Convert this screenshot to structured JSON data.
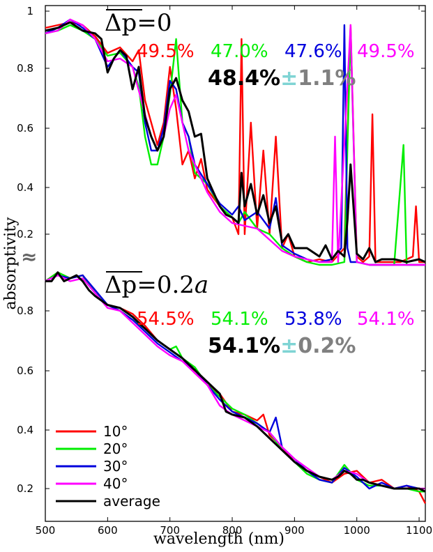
{
  "chart_data": {
    "type": "line",
    "x_label": "wavelength (nm)",
    "y_label": "absorptivity",
    "x_ticks": [
      "500",
      "600",
      "700",
      "800",
      "900",
      "1000",
      "1100"
    ],
    "xlim": [
      500,
      1110
    ],
    "break_marker": "≈",
    "colors": {
      "10": "#ff0000",
      "20": "#00ee00",
      "30": "#0000dd",
      "40": "#ff00ff",
      "average": "#000000"
    },
    "legend": {
      "position": "lower-left",
      "entries": [
        {
          "key": "10",
          "label": "10°"
        },
        {
          "key": "20",
          "label": "20°"
        },
        {
          "key": "30",
          "label": "30°"
        },
        {
          "key": "40",
          "label": "40°"
        },
        {
          "key": "average",
          "label": "average"
        }
      ]
    },
    "panels": [
      {
        "id": "top",
        "title_symbol": "Δp",
        "title_value": "=0",
        "y_ticks": [
          "1",
          "0.8",
          "0.6",
          "0.4",
          "0.2"
        ],
        "ylim": [
          0.07,
          1.0
        ],
        "percentages": [
          {
            "key": "10",
            "text": "49.5%"
          },
          {
            "key": "20",
            "text": "47.0%"
          },
          {
            "key": "30",
            "text": "47.6%"
          },
          {
            "key": "40",
            "text": "49.5%"
          }
        ],
        "average_text": "48.4%",
        "pm_symbol": "±",
        "error_text": "1.1%",
        "series": [
          {
            "key": "average",
            "x": [
              500,
              520,
              540,
              560,
              580,
              590,
              600,
              610,
              620,
              630,
              640,
              650,
              660,
              670,
              680,
              690,
              700,
              710,
              720,
              730,
              740,
              750,
              760,
              770,
              780,
              790,
              800,
              810,
              815,
              820,
              830,
              840,
              850,
              860,
              870,
              880,
              890,
              900,
              920,
              940,
              950,
              960,
              970,
              980,
              985,
              990,
              1000,
              1010,
              1020,
              1030,
              1040,
              1060,
              1080,
              1100,
              1110
            ],
            "y": [
              0.93,
              0.94,
              0.96,
              0.93,
              0.92,
              0.9,
              0.78,
              0.83,
              0.86,
              0.84,
              0.72,
              0.8,
              0.62,
              0.55,
              0.5,
              0.55,
              0.72,
              0.76,
              0.68,
              0.64,
              0.55,
              0.56,
              0.4,
              0.35,
              0.3,
              0.27,
              0.26,
              0.24,
              0.42,
              0.3,
              0.38,
              0.27,
              0.34,
              0.24,
              0.3,
              0.17,
              0.2,
              0.15,
              0.15,
              0.12,
              0.16,
              0.11,
              0.14,
              0.12,
              0.25,
              0.45,
              0.13,
              0.11,
              0.15,
              0.1,
              0.11,
              0.11,
              0.1,
              0.11,
              0.1
            ]
          },
          {
            "key": "10",
            "x": [
              500,
              520,
              540,
              560,
              580,
              600,
              620,
              640,
              650,
              660,
              670,
              680,
              690,
              700,
              710,
              720,
              730,
              740,
              750,
              760,
              780,
              800,
              810,
              815,
              820,
              830,
              840,
              850,
              860,
              870,
              880,
              890,
              900,
              920,
              940,
              960,
              980,
              990,
              1000,
              1010,
              1020,
              1025,
              1030,
              1050,
              1070,
              1090,
              1095,
              1100,
              1110
            ],
            "y": [
              0.94,
              0.95,
              0.96,
              0.95,
              0.91,
              0.85,
              0.87,
              0.82,
              0.86,
              0.68,
              0.6,
              0.52,
              0.6,
              0.8,
              0.65,
              0.45,
              0.5,
              0.4,
              0.47,
              0.36,
              0.3,
              0.26,
              0.2,
              0.9,
              0.2,
              0.6,
              0.22,
              0.5,
              0.2,
              0.55,
              0.15,
              0.2,
              0.12,
              0.1,
              0.11,
              0.1,
              0.15,
              0.95,
              0.12,
              0.1,
              0.12,
              0.63,
              0.1,
              0.1,
              0.1,
              0.12,
              0.3,
              0.1,
              0.1
            ]
          },
          {
            "key": "20",
            "x": [
              500,
              520,
              540,
              560,
              580,
              600,
              620,
              640,
              650,
              660,
              670,
              680,
              690,
              700,
              710,
              720,
              730,
              740,
              760,
              780,
              800,
              810,
              820,
              840,
              860,
              880,
              900,
              920,
              940,
              960,
              980,
              990,
              1000,
              1020,
              1040,
              1060,
              1075,
              1080,
              1100,
              1110
            ],
            "y": [
              0.92,
              0.93,
              0.95,
              0.93,
              0.9,
              0.84,
              0.85,
              0.8,
              0.73,
              0.55,
              0.45,
              0.45,
              0.55,
              0.7,
              0.9,
              0.6,
              0.55,
              0.42,
              0.38,
              0.3,
              0.26,
              0.24,
              0.28,
              0.22,
              0.2,
              0.15,
              0.12,
              0.1,
              0.09,
              0.09,
              0.1,
              0.93,
              0.1,
              0.09,
              0.09,
              0.09,
              0.52,
              0.09,
              0.09,
              0.09
            ]
          },
          {
            "key": "30",
            "x": [
              500,
              520,
              540,
              560,
              580,
              600,
              620,
              640,
              650,
              660,
              670,
              680,
              690,
              700,
              710,
              720,
              730,
              740,
              760,
              780,
              800,
              810,
              820,
              840,
              860,
              870,
              880,
              900,
              920,
              940,
              960,
              975,
              980,
              985,
              990,
              1000,
              1020,
              1040,
              1060,
              1080,
              1100,
              1110
            ],
            "y": [
              0.92,
              0.94,
              0.97,
              0.94,
              0.9,
              0.8,
              0.86,
              0.8,
              0.78,
              0.6,
              0.5,
              0.5,
              0.58,
              0.75,
              0.72,
              0.6,
              0.55,
              0.45,
              0.38,
              0.31,
              0.27,
              0.3,
              0.25,
              0.28,
              0.22,
              0.33,
              0.16,
              0.13,
              0.11,
              0.1,
              0.11,
              0.15,
              0.95,
              0.15,
              0.1,
              0.1,
              0.09,
              0.09,
              0.09,
              0.09,
              0.09,
              0.09
            ]
          },
          {
            "key": "40",
            "x": [
              500,
              520,
              540,
              560,
              580,
              600,
              620,
              640,
              660,
              670,
              680,
              690,
              700,
              710,
              720,
              730,
              740,
              760,
              780,
              800,
              820,
              840,
              860,
              880,
              900,
              920,
              940,
              960,
              965,
              970,
              990,
              1000,
              1020,
              1040,
              1060,
              1080,
              1100,
              1110
            ],
            "y": [
              0.92,
              0.93,
              0.97,
              0.95,
              0.9,
              0.82,
              0.83,
              0.8,
              0.63,
              0.55,
              0.5,
              0.55,
              0.65,
              0.7,
              0.6,
              0.5,
              0.45,
              0.35,
              0.28,
              0.24,
              0.23,
              0.22,
              0.18,
              0.14,
              0.12,
              0.11,
              0.1,
              0.1,
              0.55,
              0.1,
              0.95,
              0.1,
              0.09,
              0.09,
              0.09,
              0.09,
              0.09,
              0.09
            ]
          }
        ]
      },
      {
        "id": "bottom",
        "title_symbol": "Δp",
        "title_value": "=0.2",
        "title_suffix": "a",
        "y_ticks": [
          "0.8",
          "0.6",
          "0.4",
          "0.2"
        ],
        "ylim": [
          0.13,
          0.93
        ],
        "percentages": [
          {
            "key": "10",
            "text": "54.5%"
          },
          {
            "key": "20",
            "text": "54.1%"
          },
          {
            "key": "30",
            "text": "53.8%"
          },
          {
            "key": "40",
            "text": "54.1%"
          }
        ],
        "average_text": "54.1%",
        "pm_symbol": "±",
        "error_text": "0.2%",
        "series": [
          {
            "key": "average",
            "x": [
              500,
              510,
              520,
              530,
              540,
              550,
              560,
              570,
              580,
              600,
              620,
              640,
              660,
              680,
              700,
              720,
              740,
              760,
              780,
              790,
              800,
              820,
              840,
              860,
              880,
              900,
              920,
              940,
              960,
              970,
              980,
              990,
              1000,
              1010,
              1020,
              1040,
              1060,
              1080,
              1100,
              1110
            ],
            "y": [
              0.9,
              0.9,
              0.93,
              0.9,
              0.91,
              0.92,
              0.9,
              0.87,
              0.85,
              0.82,
              0.81,
              0.78,
              0.74,
              0.7,
              0.67,
              0.64,
              0.6,
              0.56,
              0.52,
              0.46,
              0.45,
              0.44,
              0.41,
              0.37,
              0.33,
              0.29,
              0.26,
              0.24,
              0.23,
              0.24,
              0.26,
              0.25,
              0.23,
              0.23,
              0.22,
              0.21,
              0.2,
              0.2,
              0.2,
              0.19
            ]
          },
          {
            "key": "10",
            "x": [
              500,
              520,
              540,
              560,
              580,
              600,
              620,
              640,
              660,
              680,
              700,
              720,
              740,
              760,
              780,
              800,
              820,
              840,
              850,
              860,
              880,
              900,
              920,
              940,
              960,
              980,
              1000,
              1020,
              1040,
              1060,
              1080,
              1100,
              1110
            ],
            "y": [
              0.9,
              0.93,
              0.91,
              0.92,
              0.86,
              0.82,
              0.81,
              0.79,
              0.75,
              0.7,
              0.67,
              0.64,
              0.59,
              0.55,
              0.52,
              0.46,
              0.45,
              0.43,
              0.45,
              0.38,
              0.34,
              0.29,
              0.26,
              0.24,
              0.22,
              0.25,
              0.26,
              0.22,
              0.23,
              0.2,
              0.21,
              0.19,
              0.15
            ]
          },
          {
            "key": "20",
            "x": [
              500,
              520,
              540,
              560,
              580,
              600,
              620,
              640,
              660,
              680,
              700,
              710,
              720,
              740,
              760,
              780,
              800,
              820,
              840,
              860,
              880,
              900,
              920,
              940,
              960,
              980,
              1000,
              1020,
              1040,
              1060,
              1080,
              1100,
              1110
            ],
            "y": [
              0.9,
              0.93,
              0.91,
              0.92,
              0.86,
              0.82,
              0.8,
              0.77,
              0.74,
              0.7,
              0.67,
              0.68,
              0.64,
              0.61,
              0.55,
              0.51,
              0.47,
              0.45,
              0.42,
              0.39,
              0.33,
              0.29,
              0.25,
              0.23,
              0.22,
              0.28,
              0.23,
              0.21,
              0.21,
              0.2,
              0.2,
              0.19,
              0.19
            ]
          },
          {
            "key": "30",
            "x": [
              500,
              520,
              540,
              560,
              580,
              600,
              620,
              640,
              660,
              680,
              700,
              720,
              740,
              760,
              780,
              800,
              820,
              840,
              860,
              870,
              880,
              900,
              920,
              940,
              960,
              980,
              1000,
              1020,
              1040,
              1060,
              1080,
              1100,
              1110
            ],
            "y": [
              0.9,
              0.92,
              0.91,
              0.92,
              0.87,
              0.82,
              0.8,
              0.77,
              0.73,
              0.69,
              0.66,
              0.63,
              0.6,
              0.55,
              0.5,
              0.46,
              0.44,
              0.42,
              0.39,
              0.44,
              0.34,
              0.3,
              0.26,
              0.23,
              0.22,
              0.27,
              0.24,
              0.2,
              0.22,
              0.2,
              0.21,
              0.2,
              0.19
            ]
          },
          {
            "key": "40",
            "x": [
              500,
              520,
              540,
              560,
              580,
              600,
              620,
              640,
              660,
              680,
              700,
              720,
              740,
              760,
              780,
              800,
              820,
              840,
              860,
              880,
              900,
              920,
              940,
              960,
              980,
              1000,
              1020,
              1040,
              1060,
              1080,
              1100,
              1110
            ],
            "y": [
              0.9,
              0.92,
              0.9,
              0.91,
              0.86,
              0.81,
              0.8,
              0.76,
              0.72,
              0.68,
              0.65,
              0.63,
              0.59,
              0.55,
              0.48,
              0.45,
              0.43,
              0.41,
              0.39,
              0.34,
              0.3,
              0.27,
              0.24,
              0.23,
              0.26,
              0.25,
              0.22,
              0.21,
              0.2,
              0.2,
              0.2,
              0.2
            ]
          }
        ]
      }
    ]
  }
}
